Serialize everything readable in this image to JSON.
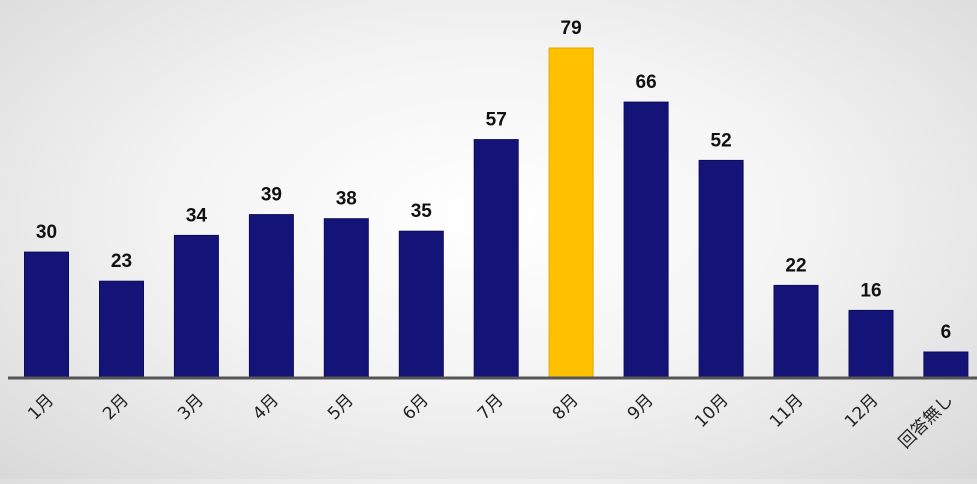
{
  "chart_data": {
    "type": "bar",
    "categories": [
      "1月",
      "2月",
      "3月",
      "4月",
      "5月",
      "6月",
      "7月",
      "8月",
      "9月",
      "10月",
      "11月",
      "12月",
      "回答無し"
    ],
    "values": [
      30,
      23,
      34,
      39,
      38,
      35,
      57,
      79,
      66,
      52,
      22,
      16,
      6
    ],
    "title": "",
    "xlabel": "",
    "ylabel": "",
    "ylim": [
      0,
      79
    ],
    "grid": false,
    "legend": "none",
    "highlight_index": 7
  },
  "colors": {
    "bar": "#141478",
    "highlight_bar": "#FFC000",
    "axis": "#555555",
    "value_text": "#111111",
    "tick_text": "#222222"
  }
}
